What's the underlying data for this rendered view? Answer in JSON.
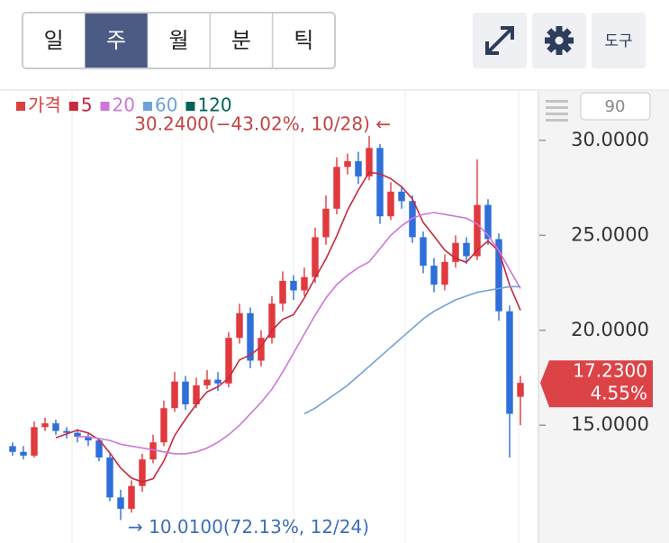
{
  "toolbar": {
    "periods": [
      "일",
      "주",
      "월",
      "분",
      "틱"
    ],
    "selected": 1,
    "tool": "도구"
  },
  "zoom": 90,
  "chart_data": {
    "type": "candlestick",
    "up_color": "#e0393e",
    "down_color": "#2e6fd9",
    "candles": {
      "open": [
        13.9,
        13.6,
        13.4,
        14.9,
        15.1,
        14.7,
        14.6,
        14.4,
        14.2,
        13.3,
        11.2,
        10.6,
        11.8,
        13.2,
        14.1,
        15.9,
        17.3,
        16.1,
        17.1,
        17.4,
        17.2,
        19.6,
        20.9,
        18.4,
        19.6,
        21.4,
        22.6,
        22.1,
        22.8,
        24.9,
        26.4,
        28.6,
        28.9,
        28.1,
        29.6,
        26.0,
        27.3,
        26.8,
        24.9,
        23.4,
        22.4,
        23.6,
        24.6,
        23.9,
        26.6,
        24.8,
        21.0,
        16.5
      ],
      "high": [
        14.1,
        13.9,
        15.2,
        15.4,
        15.3,
        14.9,
        14.8,
        14.6,
        14.3,
        13.5,
        11.6,
        12.1,
        13.5,
        14.5,
        16.3,
        17.8,
        17.6,
        17.5,
        17.9,
        17.8,
        19.9,
        21.4,
        21.2,
        20.0,
        21.8,
        23.1,
        22.9,
        23.3,
        25.4,
        27.1,
        29.1,
        29.3,
        29.4,
        30.24,
        29.8,
        27.8,
        27.6,
        27.1,
        25.2,
        23.8,
        24.0,
        25.0,
        24.9,
        29.0,
        26.9,
        25.1,
        21.3,
        17.6
      ],
      "low": [
        13.4,
        13.2,
        13.3,
        14.7,
        14.5,
        14.3,
        14.1,
        13.9,
        13.1,
        11.0,
        10.01,
        10.4,
        11.5,
        13.0,
        13.9,
        15.7,
        15.8,
        15.9,
        16.9,
        16.8,
        17.0,
        19.3,
        18.0,
        18.1,
        19.3,
        21.0,
        21.6,
        21.8,
        22.5,
        24.5,
        26.1,
        28.2,
        27.7,
        27.9,
        25.6,
        25.8,
        26.4,
        24.6,
        23.0,
        22.0,
        22.1,
        23.3,
        23.5,
        23.7,
        24.5,
        20.5,
        13.3,
        15.0
      ],
      "close": [
        13.6,
        13.4,
        14.9,
        15.1,
        14.7,
        14.6,
        14.4,
        14.2,
        13.3,
        11.2,
        10.6,
        11.8,
        13.2,
        14.1,
        15.9,
        17.3,
        16.1,
        17.1,
        17.4,
        17.2,
        19.6,
        20.9,
        18.4,
        19.6,
        21.4,
        22.6,
        22.1,
        22.8,
        24.9,
        26.4,
        28.6,
        28.9,
        28.1,
        29.6,
        26.0,
        27.3,
        26.8,
        24.9,
        23.4,
        22.4,
        23.6,
        24.6,
        23.9,
        26.6,
        24.8,
        21.0,
        15.6,
        17.23
      ]
    },
    "price_name": "가격",
    "price_color": "#d94040",
    "series": [
      {
        "name": "5",
        "color": "#c8283c",
        "values": [
          null,
          null,
          null,
          null,
          14.34,
          14.54,
          14.74,
          14.6,
          14.24,
          13.54,
          12.74,
          12.22,
          12.02,
          12.18,
          13.12,
          14.46,
          15.32,
          16.1,
          16.76,
          17.02,
          17.48,
          18.44,
          18.7,
          19.14,
          19.98,
          20.58,
          20.82,
          21.7,
          22.76,
          23.76,
          24.96,
          26.32,
          27.38,
          28.32,
          28.24,
          27.98,
          27.56,
          26.92,
          25.68,
          24.96,
          24.22,
          23.78,
          23.58,
          24.22,
          24.7,
          24.18,
          22.38,
          21.05
        ]
      },
      {
        "name": "20",
        "color": "#cc77d6",
        "values": [
          null,
          null,
          null,
          null,
          null,
          null,
          14.4,
          14.4,
          14.3,
          14.2,
          14.0,
          13.9,
          13.8,
          13.7,
          13.6,
          13.5,
          13.5,
          13.6,
          13.8,
          14.1,
          14.5,
          15.0,
          15.6,
          16.2,
          16.9,
          17.8,
          18.8,
          19.8,
          20.8,
          21.7,
          22.4,
          22.9,
          23.3,
          23.6,
          24.3,
          25.0,
          25.5,
          25.9,
          26.1,
          26.2,
          26.1,
          26.0,
          25.9,
          25.6,
          25.0,
          24.2,
          23.2,
          22.2
        ]
      },
      {
        "name": "60",
        "color": "#6fa0d8",
        "values": [
          null,
          null,
          null,
          null,
          null,
          null,
          null,
          null,
          null,
          null,
          null,
          null,
          null,
          null,
          null,
          null,
          null,
          null,
          null,
          null,
          null,
          null,
          null,
          null,
          null,
          null,
          null,
          15.6,
          15.9,
          16.3,
          16.7,
          17.1,
          17.6,
          18.1,
          18.6,
          19.1,
          19.6,
          20.1,
          20.6,
          21.0,
          21.3,
          21.6,
          21.8,
          22.0,
          22.1,
          22.2,
          22.3,
          22.3
        ]
      },
      {
        "name": "120",
        "color": "#00625a"
      }
    ],
    "ylim": [
      8.8,
      32.6
    ],
    "yticks": [
      {
        "value": 15,
        "label": "15.0000"
      },
      {
        "value": 20,
        "label": "20.0000"
      },
      {
        "value": 25,
        "label": "25.0000"
      },
      {
        "value": 30,
        "label": "30.0000"
      }
    ],
    "high_annotation": "30.2400(−43.02%, 10/28) ←",
    "low_annotation": "→ 10.0100(72.13%, 12/24)",
    "price_tag": {
      "value": 17.23,
      "label": "17.2300",
      "change": "4.55%"
    }
  }
}
